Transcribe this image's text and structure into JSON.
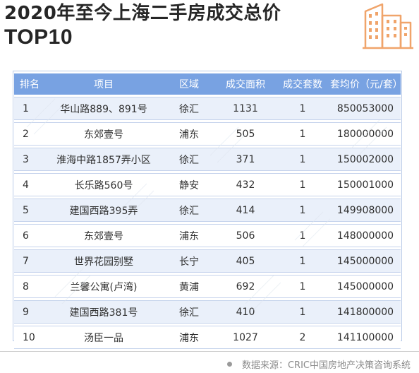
{
  "title": {
    "line1": "2020年至今上海二手房成交总价",
    "line2": "TOP10"
  },
  "icon": "city-buildings-icon",
  "accent_color": "#f0a46a",
  "header_color": "#78a2e2",
  "table": {
    "headers": [
      "排名",
      "项目",
      "区域",
      "成交面积",
      "成交套数",
      "套均价（元/套）"
    ],
    "rows": [
      {
        "rank": "1",
        "project": "华山路889、891号",
        "district": "徐汇",
        "area": "1131",
        "units": "1",
        "avg_price": "850053000"
      },
      {
        "rank": "2",
        "project": "东郊壹号",
        "district": "浦东",
        "area": "505",
        "units": "1",
        "avg_price": "180000000"
      },
      {
        "rank": "3",
        "project": "淮海中路1857弄小区",
        "district": "徐汇",
        "area": "371",
        "units": "1",
        "avg_price": "150002000"
      },
      {
        "rank": "4",
        "project": "长乐路560号",
        "district": "静安",
        "area": "432",
        "units": "1",
        "avg_price": "150001000"
      },
      {
        "rank": "5",
        "project": "建国西路395弄",
        "district": "徐汇",
        "area": "414",
        "units": "1",
        "avg_price": "149908000"
      },
      {
        "rank": "6",
        "project": "东郊壹号",
        "district": "浦东",
        "area": "506",
        "units": "1",
        "avg_price": "148000000"
      },
      {
        "rank": "7",
        "project": "世界花园别墅",
        "district": "长宁",
        "area": "405",
        "units": "1",
        "avg_price": "145000000"
      },
      {
        "rank": "8",
        "project": "兰馨公寓(卢湾)",
        "district": "黄浦",
        "area": "692",
        "units": "1",
        "avg_price": "145000000"
      },
      {
        "rank": "9",
        "project": "建国西路381号",
        "district": "徐汇",
        "area": "410",
        "units": "1",
        "avg_price": "141800000"
      },
      {
        "rank": "10",
        "project": "汤臣一品",
        "district": "浦东",
        "area": "1027",
        "units": "2",
        "avg_price": "141100000"
      }
    ]
  },
  "source": "数据来源：CRIC中国房地产决策咨询系统"
}
